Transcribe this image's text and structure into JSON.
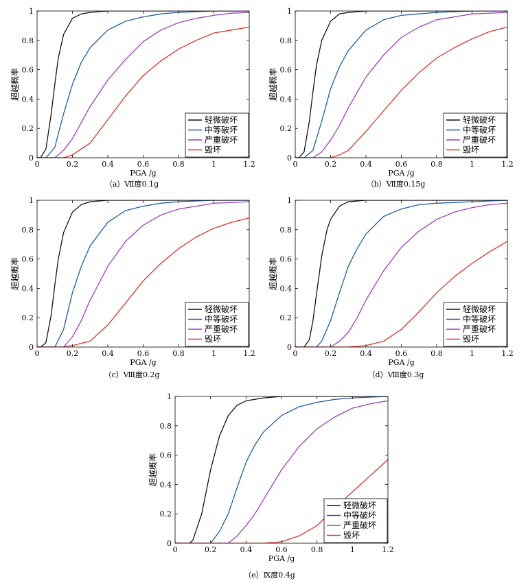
{
  "legend_labels": [
    "轻微破坏",
    "中等破坏",
    "严重破坏",
    "毁坏"
  ],
  "colors": {
    "slight": "#111111",
    "moderate": "#1f5aa6",
    "extensive": "#9a3fc0",
    "complete": "#e0302a"
  },
  "chart_data": [
    {
      "type": "line",
      "caption": "（a）Ⅶ度0.1g",
      "xlabel": "PGA /g",
      "ylabel": "超越概率",
      "xlim": [
        0,
        1.2
      ],
      "ylim": [
        0,
        1
      ],
      "xticks": [
        "0",
        "0.2",
        "0.4",
        "0.6",
        "0.8",
        "1",
        "1.2"
      ],
      "yticks": [
        "0",
        "0.2",
        "0.4",
        "0.6",
        "0.8",
        "1"
      ],
      "legend_position": "bottom-right",
      "series": [
        {
          "name": "轻微破坏",
          "x": [
            0.02,
            0.05,
            0.08,
            0.1,
            0.12,
            0.15,
            0.2,
            0.25,
            0.3,
            0.4,
            0.5,
            0.6,
            0.8,
            1.0,
            1.2
          ],
          "y": [
            0.0,
            0.06,
            0.3,
            0.5,
            0.68,
            0.84,
            0.95,
            0.98,
            0.99,
            1,
            1,
            1,
            1,
            1,
            1
          ]
        },
        {
          "name": "中等破坏",
          "x": [
            0.05,
            0.1,
            0.15,
            0.2,
            0.25,
            0.3,
            0.4,
            0.5,
            0.6,
            0.7,
            0.8,
            1.0,
            1.2
          ],
          "y": [
            0.0,
            0.07,
            0.3,
            0.5,
            0.65,
            0.75,
            0.87,
            0.93,
            0.96,
            0.98,
            0.99,
            1,
            1
          ]
        },
        {
          "name": "严重破坏",
          "x": [
            0.1,
            0.15,
            0.2,
            0.3,
            0.4,
            0.5,
            0.6,
            0.7,
            0.8,
            0.9,
            1.0,
            1.1,
            1.2
          ],
          "y": [
            0.0,
            0.05,
            0.13,
            0.35,
            0.53,
            0.67,
            0.79,
            0.87,
            0.92,
            0.95,
            0.97,
            0.985,
            0.99
          ]
        },
        {
          "name": "毁坏",
          "x": [
            0.15,
            0.2,
            0.3,
            0.4,
            0.5,
            0.6,
            0.7,
            0.8,
            0.9,
            1.0,
            1.1,
            1.2
          ],
          "y": [
            0.0,
            0.02,
            0.1,
            0.26,
            0.42,
            0.56,
            0.66,
            0.74,
            0.8,
            0.85,
            0.87,
            0.89
          ]
        }
      ]
    },
    {
      "type": "line",
      "caption": "（b）Ⅶ度0.15g",
      "xlabel": "PGA /g",
      "ylabel": "超越概率",
      "xlim": [
        0,
        1.2
      ],
      "ylim": [
        0,
        1
      ],
      "xticks": [
        "0",
        "0.2",
        "0.4",
        "0.6",
        "0.8",
        "1",
        "1.2"
      ],
      "yticks": [
        "0",
        "0.2",
        "0.4",
        "0.6",
        "0.8",
        "1"
      ],
      "legend_position": "bottom-right",
      "series": [
        {
          "name": "轻微破坏",
          "x": [
            0.02,
            0.05,
            0.08,
            0.1,
            0.12,
            0.15,
            0.2,
            0.25,
            0.3,
            0.4,
            0.5,
            0.6,
            0.8,
            1.0,
            1.2
          ],
          "y": [
            0.0,
            0.04,
            0.25,
            0.45,
            0.63,
            0.8,
            0.93,
            0.98,
            0.99,
            1,
            1,
            1,
            1,
            1,
            1
          ]
        },
        {
          "name": "中等破坏",
          "x": [
            0.05,
            0.1,
            0.15,
            0.2,
            0.25,
            0.3,
            0.4,
            0.5,
            0.6,
            0.7,
            0.8,
            1.0,
            1.2
          ],
          "y": [
            0.0,
            0.05,
            0.25,
            0.47,
            0.62,
            0.73,
            0.87,
            0.94,
            0.97,
            0.98,
            0.99,
            1,
            1
          ]
        },
        {
          "name": "严重破坏",
          "x": [
            0.1,
            0.15,
            0.2,
            0.25,
            0.3,
            0.4,
            0.5,
            0.6,
            0.7,
            0.8,
            0.9,
            1.0,
            1.2
          ],
          "y": [
            0.0,
            0.04,
            0.12,
            0.22,
            0.34,
            0.55,
            0.7,
            0.82,
            0.89,
            0.94,
            0.96,
            0.98,
            0.99
          ]
        },
        {
          "name": "毁坏",
          "x": [
            0.2,
            0.25,
            0.3,
            0.4,
            0.5,
            0.6,
            0.7,
            0.8,
            0.9,
            1.0,
            1.1,
            1.2
          ],
          "y": [
            0.0,
            0.02,
            0.05,
            0.18,
            0.32,
            0.46,
            0.58,
            0.68,
            0.75,
            0.81,
            0.86,
            0.89
          ]
        }
      ]
    },
    {
      "type": "line",
      "caption": "（c）Ⅷ度0.2g",
      "xlabel": "PGA /g",
      "ylabel": "超越概率",
      "xlim": [
        0,
        1.2
      ],
      "ylim": [
        0,
        1
      ],
      "xticks": [
        "0",
        "0.2",
        "0.4",
        "0.6",
        "0.8",
        "1",
        "1.2"
      ],
      "yticks": [
        "0",
        "0.2",
        "0.4",
        "0.6",
        "0.8",
        "1"
      ],
      "legend_position": "bottom-right",
      "series": [
        {
          "name": "轻微破坏",
          "x": [
            0.02,
            0.05,
            0.08,
            0.1,
            0.12,
            0.15,
            0.2,
            0.25,
            0.3,
            0.4,
            0.5,
            0.6,
            0.8,
            1.0,
            1.2
          ],
          "y": [
            0.0,
            0.03,
            0.22,
            0.42,
            0.6,
            0.78,
            0.92,
            0.97,
            0.99,
            1,
            1,
            1,
            1,
            1,
            1
          ]
        },
        {
          "name": "中等破坏",
          "x": [
            0.1,
            0.15,
            0.2,
            0.25,
            0.3,
            0.4,
            0.5,
            0.6,
            0.7,
            0.8,
            1.0,
            1.2
          ],
          "y": [
            0.0,
            0.12,
            0.37,
            0.55,
            0.69,
            0.85,
            0.93,
            0.96,
            0.98,
            0.99,
            1,
            1
          ]
        },
        {
          "name": "严重破坏",
          "x": [
            0.15,
            0.2,
            0.25,
            0.3,
            0.4,
            0.5,
            0.6,
            0.7,
            0.8,
            0.9,
            1.0,
            1.2
          ],
          "y": [
            0.0,
            0.07,
            0.18,
            0.32,
            0.55,
            0.72,
            0.83,
            0.9,
            0.94,
            0.96,
            0.98,
            0.99
          ]
        },
        {
          "name": "毁坏",
          "x": [
            0.15,
            0.2,
            0.3,
            0.4,
            0.5,
            0.6,
            0.7,
            0.8,
            0.9,
            1.0,
            1.1,
            1.2
          ],
          "y": [
            0.0,
            0.01,
            0.04,
            0.15,
            0.3,
            0.45,
            0.57,
            0.67,
            0.75,
            0.81,
            0.85,
            0.88
          ]
        }
      ]
    },
    {
      "type": "line",
      "caption": "（d）Ⅷ度0.3g",
      "xlabel": "PGA /g",
      "ylabel": "超越概率",
      "xlim": [
        0,
        1.2
      ],
      "ylim": [
        0,
        1
      ],
      "xticks": [
        "0",
        "0.2",
        "0.4",
        "0.6",
        "0.8",
        "1",
        "1.2"
      ],
      "yticks": [
        "0",
        "0.2",
        "0.4",
        "0.6",
        "0.8",
        "1"
      ],
      "legend_position": "bottom-right",
      "series": [
        {
          "name": "轻微破坏",
          "x": [
            0.05,
            0.08,
            0.1,
            0.12,
            0.15,
            0.18,
            0.2,
            0.25,
            0.3,
            0.4,
            0.5,
            0.6,
            0.8,
            1.0,
            1.2
          ],
          "y": [
            0.0,
            0.05,
            0.18,
            0.36,
            0.62,
            0.8,
            0.87,
            0.96,
            0.99,
            1,
            1,
            1,
            1,
            1,
            1
          ]
        },
        {
          "name": "中等破坏",
          "x": [
            0.12,
            0.15,
            0.2,
            0.25,
            0.3,
            0.35,
            0.4,
            0.5,
            0.6,
            0.7,
            0.8,
            1.0,
            1.2
          ],
          "y": [
            0.0,
            0.04,
            0.18,
            0.37,
            0.55,
            0.67,
            0.77,
            0.89,
            0.94,
            0.97,
            0.98,
            0.99,
            1
          ]
        },
        {
          "name": "严重破坏",
          "x": [
            0.2,
            0.25,
            0.3,
            0.35,
            0.4,
            0.5,
            0.6,
            0.7,
            0.8,
            0.9,
            1.0,
            1.1,
            1.2
          ],
          "y": [
            0.0,
            0.04,
            0.1,
            0.2,
            0.32,
            0.52,
            0.68,
            0.79,
            0.87,
            0.92,
            0.95,
            0.97,
            0.98
          ]
        },
        {
          "name": "毁坏",
          "x": [
            0.3,
            0.4,
            0.5,
            0.6,
            0.7,
            0.8,
            0.9,
            1.0,
            1.1,
            1.2
          ],
          "y": [
            0.0,
            0.01,
            0.04,
            0.12,
            0.24,
            0.37,
            0.48,
            0.57,
            0.65,
            0.72
          ]
        }
      ]
    },
    {
      "type": "line",
      "caption": "（e）Ⅸ度0.4g",
      "xlabel": "PGA /g",
      "ylabel": "超越概率",
      "xlim": [
        0,
        1.2
      ],
      "ylim": [
        0,
        1
      ],
      "xticks": [
        "0",
        "0.2",
        "0.4",
        "0.6",
        "0.8",
        "1",
        "1.2"
      ],
      "yticks": [
        "0",
        "0.2",
        "0.4",
        "0.6",
        "0.8",
        "1"
      ],
      "legend_position": "bottom-right",
      "series": [
        {
          "name": "轻微破坏",
          "x": [
            0.08,
            0.1,
            0.15,
            0.2,
            0.25,
            0.3,
            0.35,
            0.4,
            0.5,
            0.6,
            0.8,
            1.0,
            1.2
          ],
          "y": [
            0.0,
            0.02,
            0.2,
            0.5,
            0.73,
            0.87,
            0.94,
            0.97,
            0.99,
            1,
            1,
            1,
            1
          ]
        },
        {
          "name": "中等破坏",
          "x": [
            0.2,
            0.25,
            0.3,
            0.35,
            0.4,
            0.45,
            0.5,
            0.6,
            0.7,
            0.8,
            0.9,
            1.0,
            1.2
          ],
          "y": [
            0.0,
            0.08,
            0.2,
            0.38,
            0.55,
            0.67,
            0.76,
            0.87,
            0.93,
            0.96,
            0.98,
            0.99,
            1
          ]
        },
        {
          "name": "严重破坏",
          "x": [
            0.3,
            0.35,
            0.4,
            0.45,
            0.5,
            0.6,
            0.7,
            0.8,
            0.9,
            1.0,
            1.1,
            1.2
          ],
          "y": [
            0.0,
            0.05,
            0.12,
            0.2,
            0.3,
            0.5,
            0.66,
            0.78,
            0.86,
            0.92,
            0.95,
            0.97
          ]
        },
        {
          "name": "毁坏",
          "x": [
            0.5,
            0.6,
            0.7,
            0.8,
            0.9,
            1.0,
            1.1,
            1.2
          ],
          "y": [
            0.0,
            0.01,
            0.05,
            0.12,
            0.24,
            0.35,
            0.46,
            0.57
          ]
        }
      ]
    }
  ]
}
